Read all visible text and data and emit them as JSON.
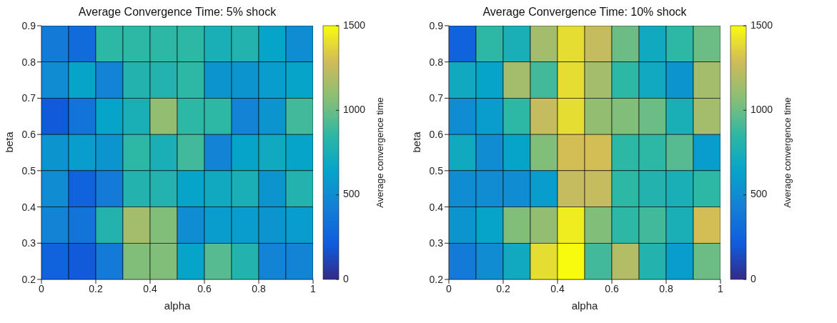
{
  "chart_data": [
    {
      "type": "heatmap",
      "title": "Average Convergence Time: 5% shock",
      "xlabel": "alpha",
      "ylabel": "beta",
      "clabel": "Average convergence time",
      "xlim": [
        0,
        1
      ],
      "xticks": [
        0,
        0.2,
        0.4,
        0.6,
        0.8,
        1
      ],
      "ylim": [
        0.2,
        0.9
      ],
      "yticks": [
        0.2,
        0.3,
        0.4,
        0.5,
        0.6,
        0.7,
        0.8,
        0.9
      ],
      "clim": [
        0,
        1500
      ],
      "cticks": [
        0,
        500,
        1000,
        1500
      ],
      "cells": [
        [
          400,
          300,
          850,
          850,
          850,
          850,
          750,
          800,
          650,
          500
        ],
        [
          500,
          650,
          450,
          800,
          800,
          850,
          550,
          550,
          600,
          650
        ],
        [
          200,
          350,
          650,
          750,
          1100,
          850,
          850,
          450,
          550,
          900
        ],
        [
          550,
          600,
          550,
          850,
          750,
          900,
          450,
          650,
          700,
          650
        ],
        [
          500,
          250,
          400,
          800,
          800,
          650,
          700,
          750,
          550,
          800
        ],
        [
          450,
          350,
          800,
          1150,
          1050,
          500,
          600,
          600,
          550,
          600
        ],
        [
          250,
          200,
          400,
          1050,
          1050,
          650,
          950,
          800,
          450,
          450
        ]
      ]
    },
    {
      "type": "heatmap",
      "title": "Average Convergence Time: 10% shock",
      "xlabel": "alpha",
      "ylabel": "beta",
      "clabel": "Average convergence time",
      "xlim": [
        0,
        1
      ],
      "xticks": [
        0,
        0.2,
        0.4,
        0.6,
        0.8,
        1
      ],
      "ylim": [
        0.2,
        0.9
      ],
      "yticks": [
        0.2,
        0.3,
        0.4,
        0.5,
        0.6,
        0.7,
        0.8,
        0.9
      ],
      "clim": [
        0,
        1500
      ],
      "cticks": [
        0,
        500,
        1000,
        1500
      ],
      "cells": [
        [
          250,
          850,
          750,
          1150,
          1400,
          1250,
          1000,
          700,
          850,
          1000
        ],
        [
          700,
          650,
          1150,
          900,
          1400,
          1150,
          850,
          700,
          550,
          1150
        ],
        [
          500,
          600,
          850,
          1250,
          1400,
          1100,
          1050,
          1000,
          750,
          1150
        ],
        [
          700,
          500,
          650,
          1050,
          1300,
          1300,
          850,
          850,
          950,
          600
        ],
        [
          500,
          500,
          500,
          600,
          1250,
          1250,
          850,
          800,
          750,
          850
        ],
        [
          550,
          650,
          1050,
          1100,
          1450,
          1050,
          850,
          900,
          750,
          1300
        ],
        [
          400,
          500,
          700,
          1400,
          1500,
          900,
          1200,
          800,
          600,
          1000
        ]
      ]
    }
  ]
}
